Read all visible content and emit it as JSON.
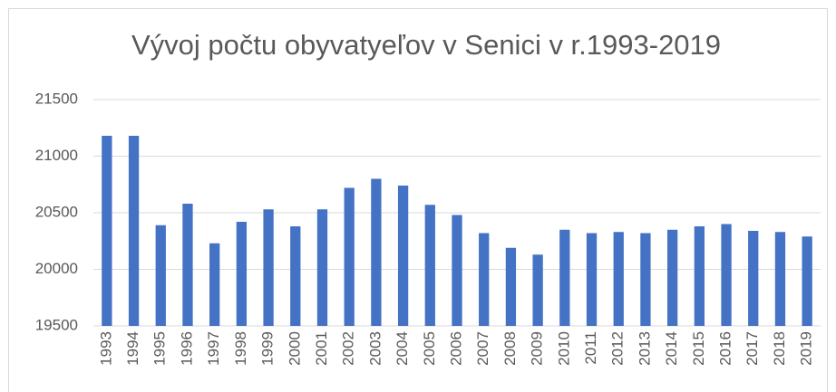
{
  "chart_data": {
    "type": "bar",
    "title": "Vývoj počtu obyvatyeľov v Senici  v r.1993-2019",
    "categories": [
      "1993",
      "1994",
      "1995",
      "1996",
      "1997",
      "1998",
      "1999",
      "2000",
      "2001",
      "2002",
      "2003",
      "2004",
      "2005",
      "2006",
      "2007",
      "2008",
      "2009",
      "2010",
      "2011",
      "2012",
      "2013",
      "2014",
      "2015",
      "2016",
      "2017",
      "2018",
      "2019"
    ],
    "values": [
      21180,
      21180,
      20390,
      20580,
      20230,
      20420,
      20530,
      20380,
      20530,
      20720,
      20800,
      20740,
      20570,
      20480,
      20320,
      20190,
      20130,
      20350,
      20320,
      20330,
      20320,
      20350,
      20380,
      20400,
      20340,
      20330,
      20290
    ],
    "color": "#4472c4",
    "ylim": [
      19500,
      21500
    ],
    "yticks": [
      19500,
      20000,
      20500,
      21000,
      21500
    ],
    "grid": true
  }
}
